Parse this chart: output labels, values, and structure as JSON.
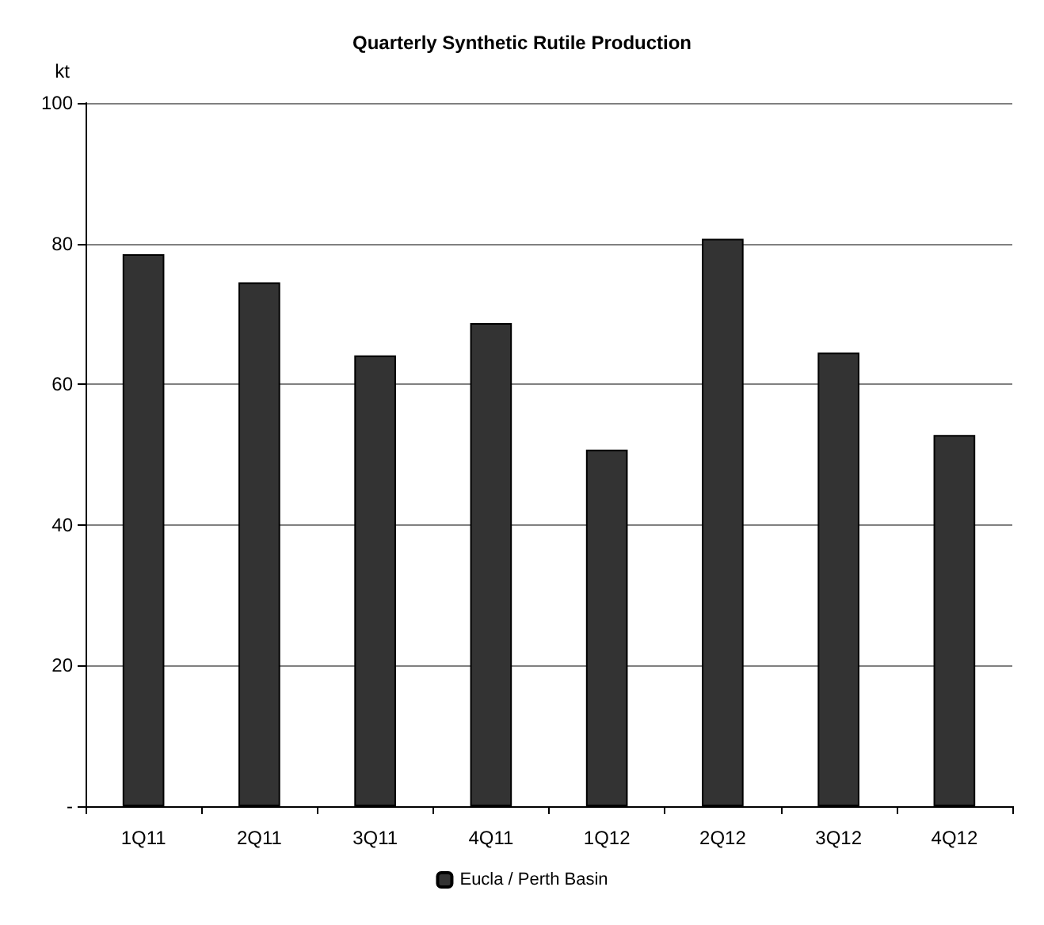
{
  "chart_data": {
    "type": "bar",
    "title": "Quarterly Synthetic Rutile Production",
    "ylabel": "kt",
    "categories": [
      "1Q11",
      "2Q11",
      "3Q11",
      "4Q11",
      "1Q12",
      "2Q12",
      "3Q12",
      "4Q12"
    ],
    "series": [
      {
        "name": "Eucla / Perth Basin",
        "color": "#333333",
        "values": [
          78.5,
          74.5,
          64.1,
          68.7,
          50.7,
          80.7,
          64.5,
          52.8
        ]
      }
    ],
    "ylim": [
      0,
      100
    ],
    "yticks": [
      {
        "value": 0,
        "label": "-"
      },
      20,
      40,
      60,
      80,
      100
    ],
    "grid": "y",
    "legend": "bottom"
  }
}
